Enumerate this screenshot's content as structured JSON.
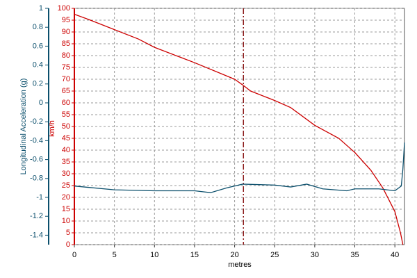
{
  "chart_data": {
    "type": "line",
    "x_label": "metres",
    "y_label": "km/h",
    "y2_label": "Longitudinal Acceleration (g)",
    "xlim": [
      0,
      41.2
    ],
    "xticks": [
      0,
      5,
      10,
      15,
      20,
      25,
      30,
      35,
      40
    ],
    "ylim": [
      0,
      100
    ],
    "yticks": [
      0,
      5,
      10,
      15,
      20,
      25,
      30,
      35,
      40,
      45,
      50,
      55,
      60,
      65,
      70,
      75,
      80,
      85,
      90,
      95,
      100
    ],
    "y2lim": [
      -1.5,
      1
    ],
    "y2ticks": [
      -1.4,
      -1.2,
      -1,
      -0.8,
      -0.6,
      -0.4,
      -0.2,
      0,
      0.2,
      0.4,
      0.6,
      0.8,
      1
    ],
    "grid": true,
    "y_color": "#cc0000",
    "y2_color": "#0b4f6c",
    "cursor_x": 21.1,
    "cursor_color": "#8b1a1a",
    "series": [
      {
        "color": "#cc0000",
        "axis": "y",
        "x": [
          0,
          2,
          5,
          8,
          10,
          15,
          20,
          21,
          22,
          25,
          27,
          30,
          33,
          35,
          37,
          38.5,
          40,
          40.7,
          41
        ],
        "values": [
          97.5,
          95,
          91,
          87,
          83.5,
          77,
          70,
          67.6,
          65,
          61,
          58,
          50.5,
          45,
          39,
          31.5,
          24,
          14,
          5,
          0
        ]
      },
      {
        "color": "#0b4f6c",
        "axis": "y2",
        "x": [
          0,
          5,
          10,
          15,
          17,
          19,
          21,
          25,
          27,
          29,
          31,
          34,
          35,
          38,
          40,
          40.8,
          41,
          41.2
        ],
        "values": [
          -0.88,
          -0.92,
          -0.93,
          -0.93,
          -0.95,
          -0.9,
          -0.86,
          -0.87,
          -0.89,
          -0.86,
          -0.91,
          -0.93,
          -0.91,
          -0.91,
          -0.93,
          -0.88,
          -0.7,
          -0.42
        ]
      }
    ]
  }
}
